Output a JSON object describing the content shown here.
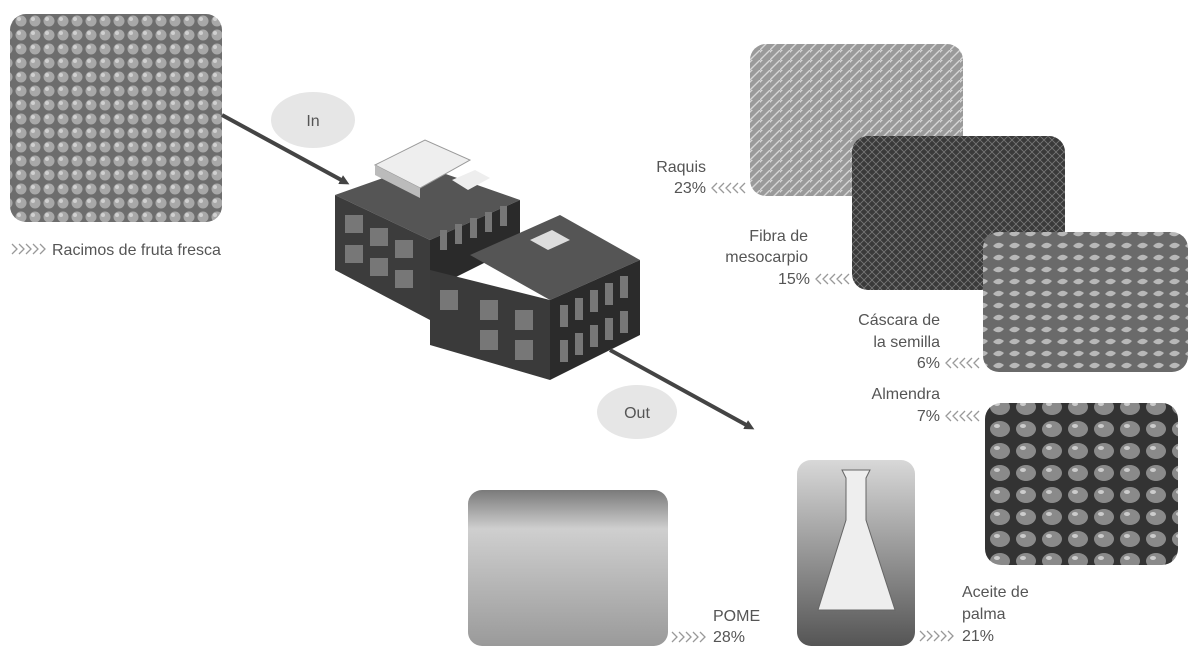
{
  "input": {
    "badge": "In",
    "label": "Racimos de fruta fresca"
  },
  "output_badge": "Out",
  "outputs": [
    {
      "lines": [
        "Raquis"
      ],
      "share": "23%"
    },
    {
      "lines": [
        "Fibra de",
        "mesocarpio"
      ],
      "share": "15%"
    },
    {
      "lines": [
        "Cáscara de",
        "la semilla"
      ],
      "share": "6%"
    },
    {
      "lines": [
        "Almendra"
      ],
      "share": "7%"
    },
    {
      "lines": [
        "POME"
      ],
      "share": "28%"
    },
    {
      "lines": [
        "Aceite de",
        "palma"
      ],
      "share": "21%"
    }
  ]
}
